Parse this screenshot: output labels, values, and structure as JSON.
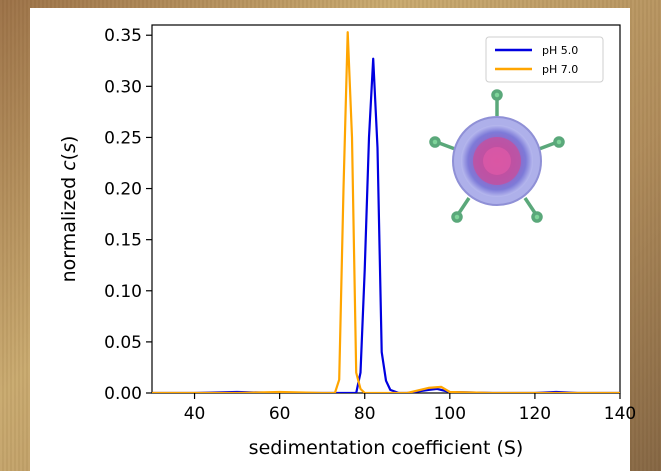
{
  "chart_data": {
    "type": "line",
    "xlabel": "sedimentation coefficient (S)",
    "ylabel_prefix": "normalized ",
    "ylabel_italic": "c",
    "ylabel_open": "(",
    "ylabel_var": "s",
    "ylabel_close": ")",
    "xlim": [
      30,
      140
    ],
    "ylim": [
      0,
      0.36
    ],
    "xticks": [
      40,
      60,
      80,
      100,
      120,
      140
    ],
    "yticks": [
      0.0,
      0.05,
      0.1,
      0.15,
      0.2,
      0.25,
      0.3,
      0.35
    ],
    "legend_position": "top-right",
    "series": [
      {
        "name": "pH 5.0",
        "color": "#0000e0",
        "x": [
          30,
          40,
          50,
          60,
          70,
          76,
          78,
          79,
          80,
          81,
          82,
          83,
          84,
          85,
          86,
          88,
          90,
          95,
          97,
          100,
          110,
          120,
          125,
          130,
          140
        ],
        "y": [
          0.0,
          0.0,
          0.001,
          0.0,
          0.0,
          0.0,
          0.0,
          0.02,
          0.12,
          0.25,
          0.327,
          0.24,
          0.04,
          0.012,
          0.003,
          0.0,
          0.0,
          0.003,
          0.004,
          0.001,
          0.0,
          0.0,
          0.001,
          0.0,
          0.0
        ]
      },
      {
        "name": "pH 7.0",
        "color": "#ffa500",
        "x": [
          30,
          40,
          50,
          60,
          70,
          73,
          74,
          75,
          76,
          77,
          78,
          79,
          80,
          82,
          90,
          95,
          98,
          100,
          110,
          120,
          130,
          140
        ],
        "y": [
          0.0,
          0.0,
          0.0,
          0.001,
          0.0,
          0.0,
          0.013,
          0.2,
          0.353,
          0.25,
          0.02,
          0.004,
          0.0,
          0.0,
          0.0,
          0.005,
          0.006,
          0.001,
          0.0,
          0.0,
          0.0,
          0.0
        ]
      }
    ],
    "inset_image": "virus-particle"
  }
}
